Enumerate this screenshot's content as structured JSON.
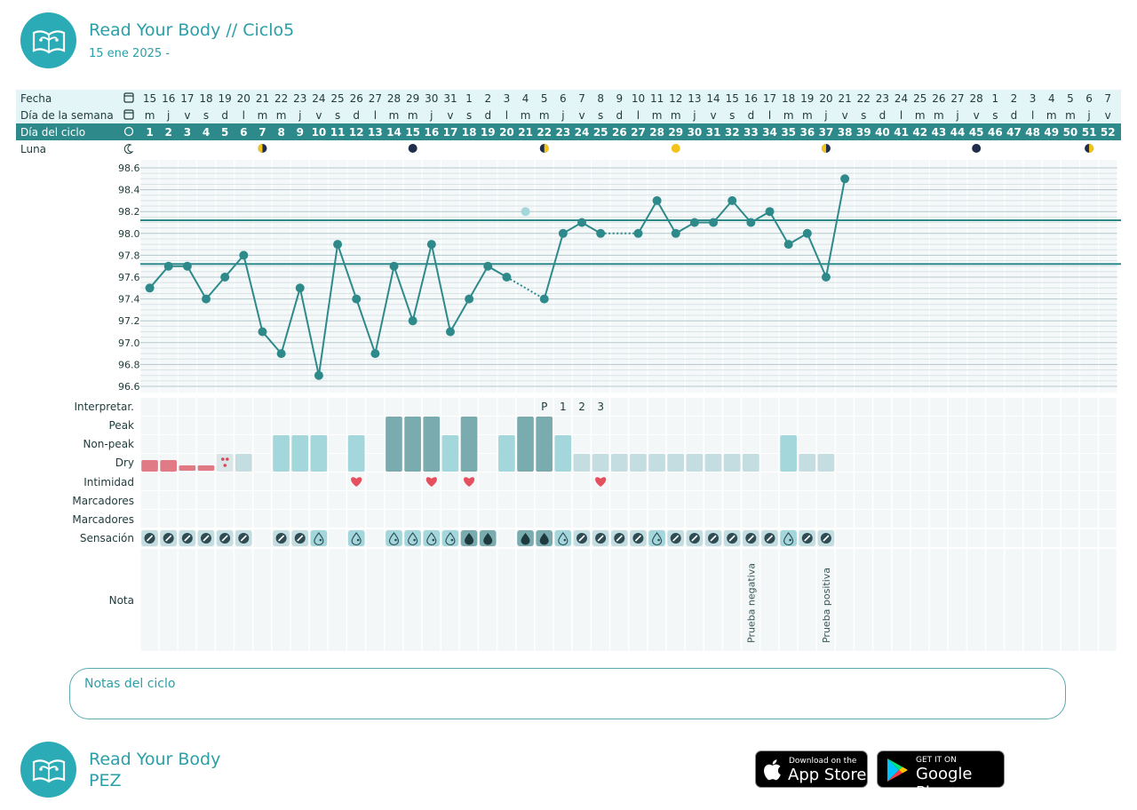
{
  "header": {
    "title": "Read Your Body // Ciclo5",
    "date": "15 ene 2025 -"
  },
  "footer": {
    "brand": "Read Your Body",
    "user": "PEZ"
  },
  "notes": {
    "label": "Notas del ciclo"
  },
  "stores": {
    "apple": {
      "small": "Download on the",
      "big": "App Store"
    },
    "google": {
      "small": "GET IT ON",
      "big": "Google Play"
    }
  },
  "colors": {
    "accent": "#2aabb5",
    "line": "#2e8a8a",
    "light": "#a3d7dc",
    "medium": "#79abaf",
    "pale": "#c4dde0",
    "blood": "#e07b86"
  },
  "rows": {
    "fecha": "Fecha",
    "dia_semana": "Día de la semana",
    "dia_ciclo": "Día del ciclo",
    "luna": "Luna",
    "interpretar": "Interpretar.",
    "peak": "Peak",
    "nonpeak": "Non-peak",
    "dry": "Dry",
    "intimidad": "Intimidad",
    "marcadores1": "Marcadores",
    "marcadores2": "Marcadores",
    "sensacion": "Sensación",
    "nota": "Nota"
  },
  "chart_data": {
    "type": "line",
    "dates": [
      15,
      16,
      17,
      18,
      19,
      20,
      21,
      22,
      23,
      24,
      25,
      26,
      27,
      28,
      29,
      30,
      31,
      1,
      2,
      3,
      4,
      5,
      6,
      7,
      8,
      9,
      10,
      11,
      12,
      13,
      14,
      15,
      16,
      17,
      18,
      19,
      20,
      21,
      22,
      23,
      24,
      25,
      26,
      27,
      28,
      1,
      2,
      3,
      4,
      5,
      6,
      7
    ],
    "weekdays": [
      "m",
      "j",
      "v",
      "s",
      "d",
      "l",
      "m",
      "m",
      "j",
      "v",
      "s",
      "d",
      "l",
      "m",
      "m",
      "j",
      "v",
      "s",
      "d",
      "l",
      "m",
      "m",
      "j",
      "v",
      "s",
      "d",
      "l",
      "m",
      "m",
      "j",
      "v",
      "s",
      "d",
      "l",
      "m",
      "m",
      "j",
      "v",
      "s",
      "d",
      "l",
      "m",
      "m",
      "j",
      "v",
      "s",
      "d",
      "l",
      "m",
      "m",
      "j",
      "v"
    ],
    "cycle_days": [
      1,
      2,
      3,
      4,
      5,
      6,
      7,
      8,
      9,
      10,
      11,
      12,
      13,
      14,
      15,
      16,
      17,
      18,
      19,
      20,
      21,
      22,
      23,
      24,
      25,
      26,
      27,
      28,
      29,
      30,
      31,
      32,
      33,
      34,
      35,
      36,
      37,
      38,
      39,
      40,
      41,
      42,
      43,
      44,
      45,
      46,
      47,
      48,
      49,
      50,
      51,
      52
    ],
    "temperature": [
      97.5,
      97.7,
      97.7,
      97.4,
      97.6,
      97.8,
      97.1,
      96.9,
      97.5,
      96.7,
      97.9,
      97.4,
      96.9,
      97.7,
      97.2,
      97.9,
      97.1,
      97.4,
      97.7,
      97.6,
      null,
      97.4,
      98.0,
      98.1,
      98.0,
      null,
      98.0,
      98.3,
      98.0,
      98.1,
      98.1,
      98.3,
      98.1,
      98.2,
      97.9,
      98.0,
      97.6,
      98.5
    ],
    "dotted_gaps": [
      [
        20,
        22
      ],
      [
        25,
        27
      ]
    ],
    "excluded_points": [
      {
        "day": 21,
        "value": 98.2
      }
    ],
    "coverline_high": 98.12,
    "coverline_low": 97.72,
    "ylim": [
      96.6,
      98.6
    ],
    "yticks": [
      "98.6",
      "98.4",
      "98.2",
      "98.0",
      "97.8",
      "97.6",
      "97.4",
      "97.2",
      "97.0",
      "96.8",
      "96.6"
    ],
    "moon": [
      {
        "day": 7,
        "phase": "first-quarter"
      },
      {
        "day": 15,
        "phase": "new"
      },
      {
        "day": 22,
        "phase": "last-quarter"
      },
      {
        "day": 29,
        "phase": "full"
      },
      {
        "day": 37,
        "phase": "first-quarter"
      },
      {
        "day": 45,
        "phase": "new"
      },
      {
        "day": 51,
        "phase": "last-quarter"
      }
    ],
    "interpretation": [
      {
        "day": 22,
        "label": "P"
      },
      {
        "day": 23,
        "label": "1"
      },
      {
        "day": 24,
        "label": "2"
      },
      {
        "day": 25,
        "label": "3"
      }
    ],
    "mucus": [
      {
        "day": 1,
        "type": "blood"
      },
      {
        "day": 2,
        "type": "blood"
      },
      {
        "day": 3,
        "type": "spot"
      },
      {
        "day": 4,
        "type": "spot"
      },
      {
        "day": 5,
        "type": "spotting-drops"
      },
      {
        "day": 6,
        "type": "dry"
      },
      {
        "day": 8,
        "type": "nonpeak"
      },
      {
        "day": 9,
        "type": "nonpeak"
      },
      {
        "day": 10,
        "type": "nonpeak"
      },
      {
        "day": 12,
        "type": "nonpeak"
      },
      {
        "day": 14,
        "type": "peak"
      },
      {
        "day": 15,
        "type": "peak"
      },
      {
        "day": 16,
        "type": "peak"
      },
      {
        "day": 17,
        "type": "nonpeak"
      },
      {
        "day": 18,
        "type": "peak"
      },
      {
        "day": 20,
        "type": "nonpeak"
      },
      {
        "day": 21,
        "type": "peak"
      },
      {
        "day": 22,
        "type": "peak"
      },
      {
        "day": 23,
        "type": "nonpeak"
      },
      {
        "day": 24,
        "type": "dry"
      },
      {
        "day": 25,
        "type": "dry"
      },
      {
        "day": 26,
        "type": "dry"
      },
      {
        "day": 27,
        "type": "dry"
      },
      {
        "day": 28,
        "type": "dry"
      },
      {
        "day": 29,
        "type": "dry"
      },
      {
        "day": 30,
        "type": "dry"
      },
      {
        "day": 31,
        "type": "dry"
      },
      {
        "day": 32,
        "type": "dry"
      },
      {
        "day": 33,
        "type": "dry"
      },
      {
        "day": 35,
        "type": "nonpeak"
      },
      {
        "day": 36,
        "type": "dry"
      },
      {
        "day": 37,
        "type": "dry"
      }
    ],
    "intimacy_days": [
      12,
      16,
      18,
      25
    ],
    "sensation": [
      {
        "day": 1,
        "type": "dry"
      },
      {
        "day": 2,
        "type": "dry"
      },
      {
        "day": 3,
        "type": "dry"
      },
      {
        "day": 4,
        "type": "dry"
      },
      {
        "day": 5,
        "type": "dry"
      },
      {
        "day": 6,
        "type": "dry"
      },
      {
        "day": 8,
        "type": "dry"
      },
      {
        "day": 9,
        "type": "dry"
      },
      {
        "day": 10,
        "type": "moist"
      },
      {
        "day": 12,
        "type": "moist"
      },
      {
        "day": 14,
        "type": "moist"
      },
      {
        "day": 15,
        "type": "moist"
      },
      {
        "day": 16,
        "type": "moist"
      },
      {
        "day": 17,
        "type": "moist"
      },
      {
        "day": 18,
        "type": "wet"
      },
      {
        "day": 19,
        "type": "wet"
      },
      {
        "day": 21,
        "type": "wet"
      },
      {
        "day": 22,
        "type": "wet"
      },
      {
        "day": 23,
        "type": "moist"
      },
      {
        "day": 24,
        "type": "dry"
      },
      {
        "day": 25,
        "type": "dry"
      },
      {
        "day": 26,
        "type": "dry"
      },
      {
        "day": 27,
        "type": "dry"
      },
      {
        "day": 28,
        "type": "moist"
      },
      {
        "day": 29,
        "type": "dry"
      },
      {
        "day": 30,
        "type": "dry"
      },
      {
        "day": 31,
        "type": "dry"
      },
      {
        "day": 32,
        "type": "dry"
      },
      {
        "day": 33,
        "type": "dry"
      },
      {
        "day": 34,
        "type": "dry"
      },
      {
        "day": 35,
        "type": "moist"
      },
      {
        "day": 36,
        "type": "dry"
      },
      {
        "day": 37,
        "type": "dry"
      }
    ],
    "notes": [
      {
        "day": 33,
        "text": "Prueba negativa"
      },
      {
        "day": 37,
        "text": "Prueba positiva"
      }
    ]
  }
}
